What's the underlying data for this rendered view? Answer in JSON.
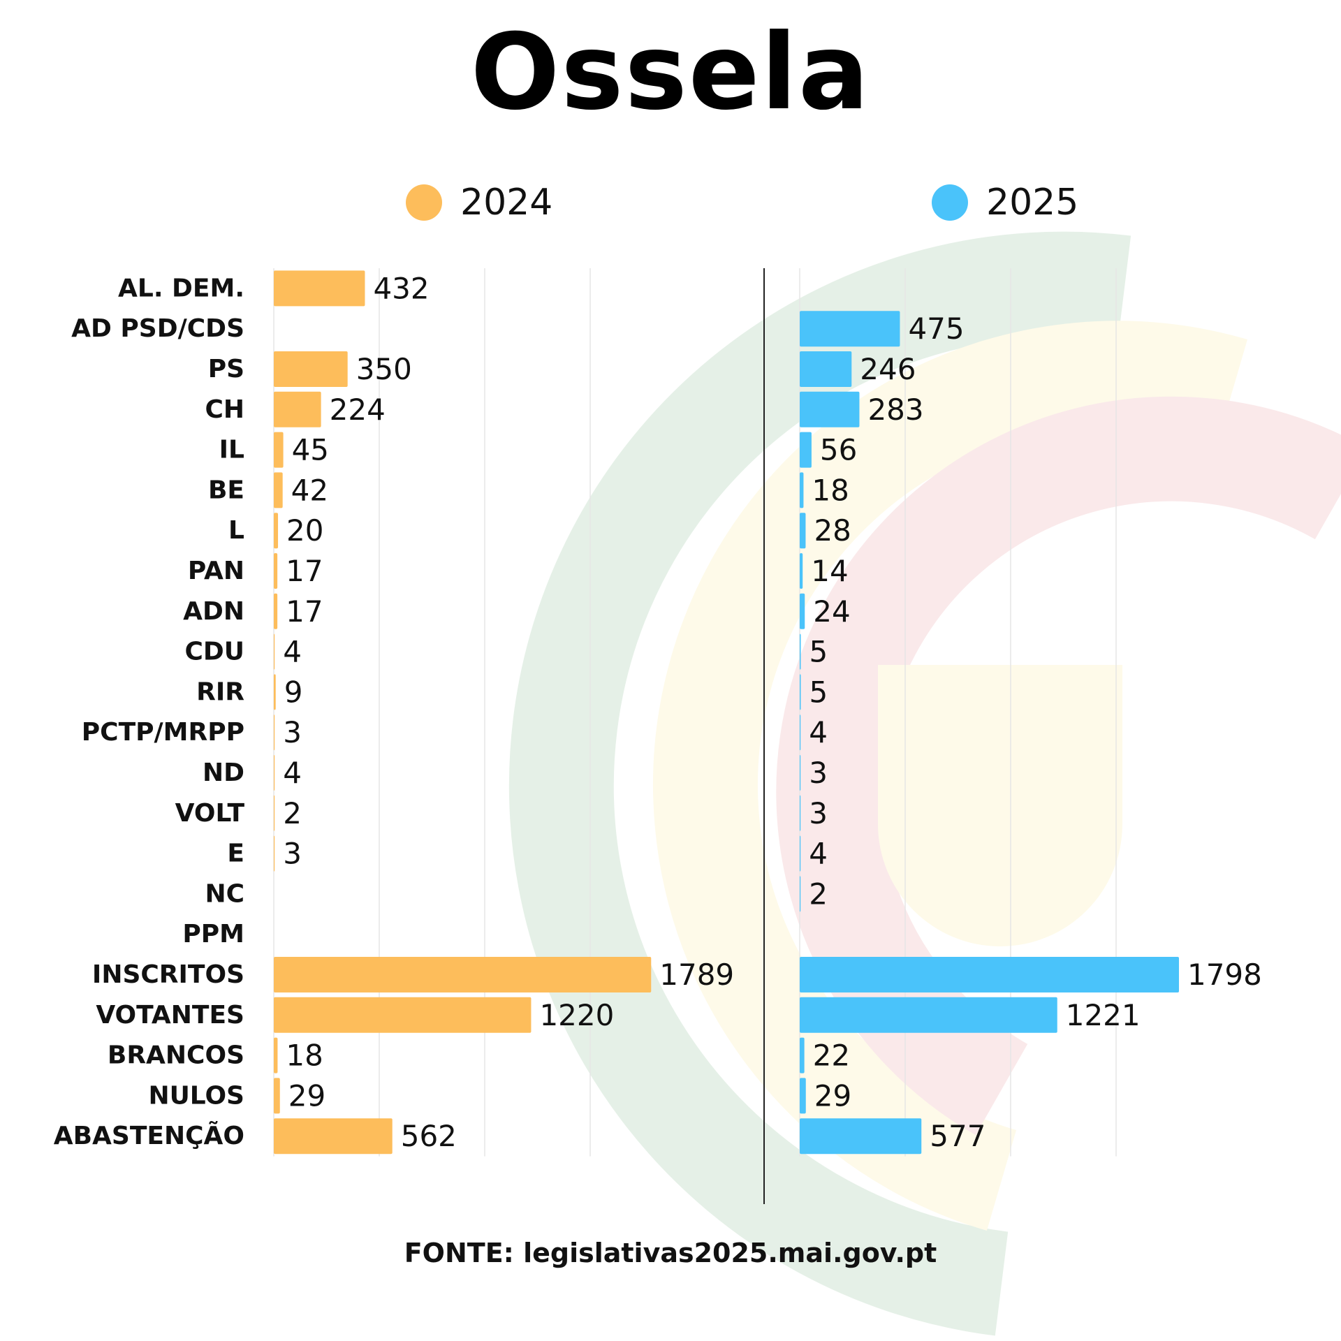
{
  "title": "Ossela",
  "source": "FONTE: legislativas2025.mai.gov.pt",
  "colors": {
    "series_2024": "#fdbd5b",
    "series_2025": "#4ac3fa",
    "text": "#111111",
    "grid": "#e6e6e6"
  },
  "chart_data": {
    "type": "bar",
    "orientation": "horizontal",
    "categories": [
      "AL. DEM.",
      "AD PSD/CDS",
      "PS",
      "CH",
      "IL",
      "BE",
      "L",
      "PAN",
      "ADN",
      "CDU",
      "RIR",
      "PCTP/MRPP",
      "ND",
      "VOLT",
      "E",
      "NC",
      "PPM",
      "INSCRITOS",
      "VOTANTES",
      "BRANCOS",
      "NULOS",
      "ABASTENÇÃO"
    ],
    "series": [
      {
        "name": "2024",
        "color": "#fdbd5b",
        "values": [
          432,
          null,
          350,
          224,
          45,
          42,
          20,
          17,
          17,
          4,
          9,
          3,
          4,
          2,
          3,
          null,
          null,
          1789,
          1220,
          18,
          29,
          562
        ]
      },
      {
        "name": "2025",
        "color": "#4ac3fa",
        "values": [
          null,
          475,
          246,
          283,
          56,
          18,
          28,
          14,
          24,
          5,
          5,
          4,
          3,
          3,
          4,
          2,
          null,
          1798,
          1221,
          22,
          29,
          577
        ]
      }
    ],
    "xlim": [
      0,
      2000
    ],
    "grid": true,
    "legend_position": "top"
  }
}
